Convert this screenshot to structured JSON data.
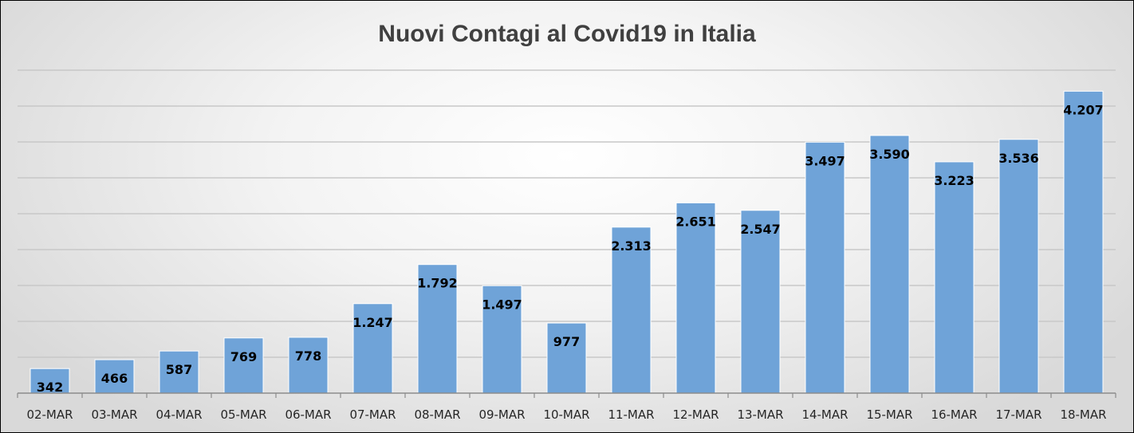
{
  "chart_data": {
    "type": "bar",
    "title": "Nuovi Contagi al Covid19 in Italia",
    "xlabel": "",
    "ylabel": "",
    "categories": [
      "02-MAR",
      "03-MAR",
      "04-MAR",
      "05-MAR",
      "06-MAR",
      "07-MAR",
      "08-MAR",
      "09-MAR",
      "10-MAR",
      "11-MAR",
      "12-MAR",
      "13-MAR",
      "14-MAR",
      "15-MAR",
      "16-MAR",
      "17-MAR",
      "18-MAR"
    ],
    "values": [
      342,
      466,
      587,
      769,
      778,
      1247,
      1792,
      1497,
      977,
      2313,
      2651,
      2547,
      3497,
      3590,
      3223,
      3536,
      4207
    ],
    "value_labels": [
      "342",
      "466",
      "587",
      "769",
      "778",
      "1.247",
      "1.792",
      "1.497",
      "977",
      "2.313",
      "2.651",
      "2.547",
      "3.497",
      "3.590",
      "3.223",
      "3.536",
      "4.207"
    ],
    "ylim": [
      0,
      4500
    ],
    "y_gridline_step": 500,
    "y_tick_labels_shown": false,
    "grid": true,
    "legend": "none",
    "colors": {
      "bar": "#6fa3d8",
      "bar_edge": "#ffffff",
      "gridline": "#c8c8c8",
      "title": "#404040"
    }
  }
}
